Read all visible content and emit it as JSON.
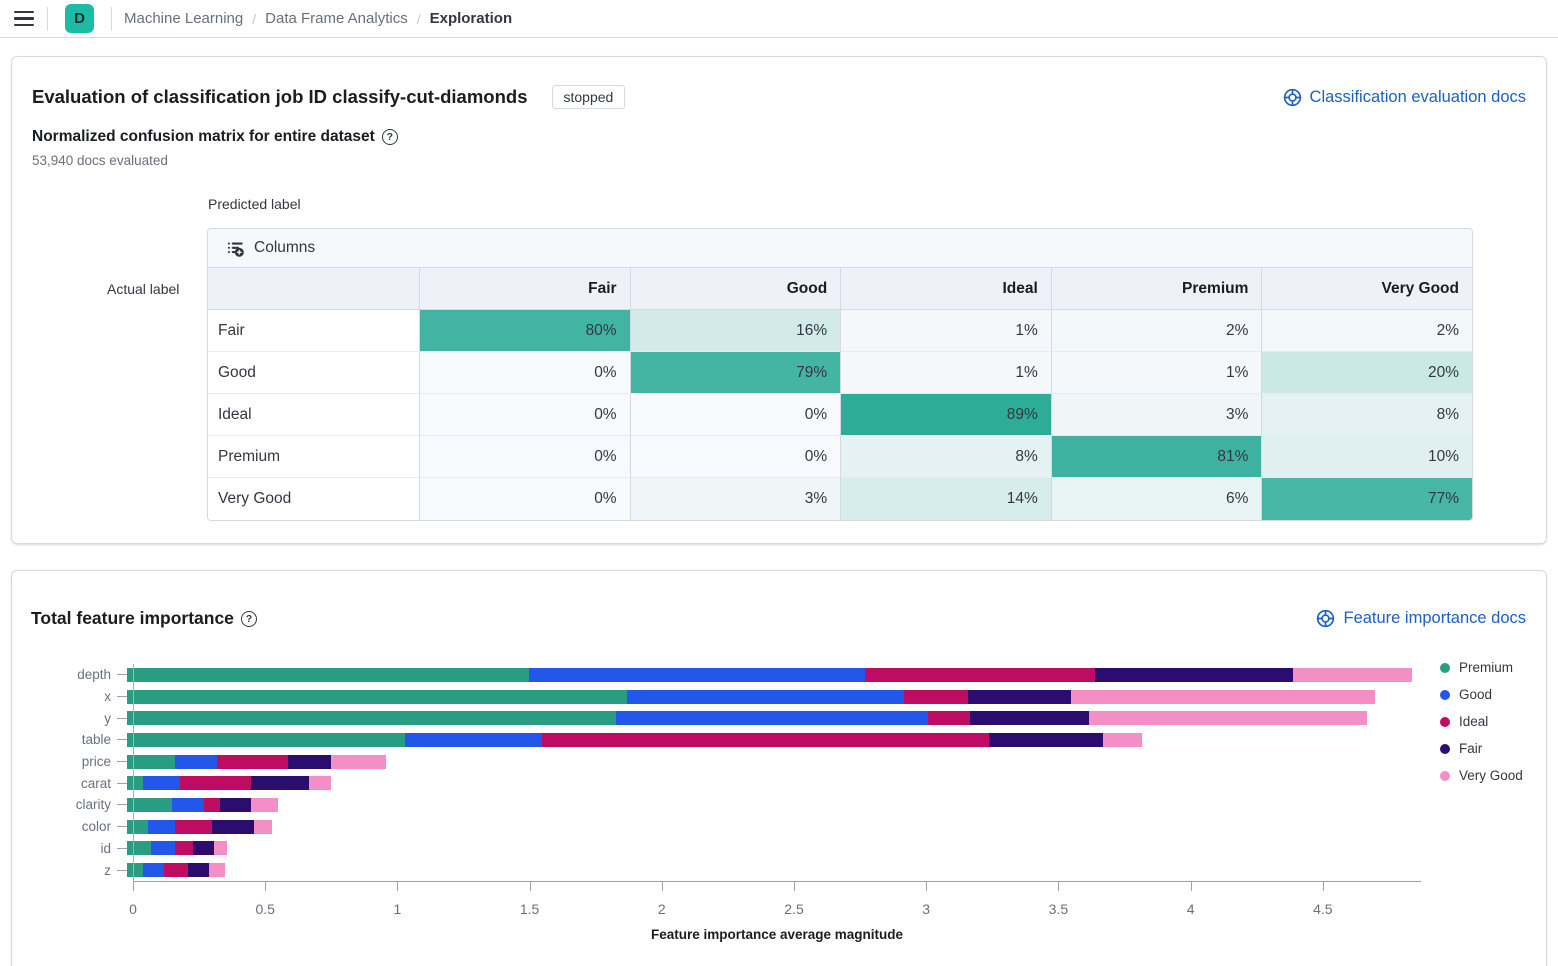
{
  "header": {
    "logo_letter": "D",
    "logo_color": "#1DBBA5",
    "breadcrumbs": [
      {
        "label": "Machine Learning"
      },
      {
        "label": "Data Frame Analytics"
      },
      {
        "label": "Exploration"
      }
    ]
  },
  "evaluation_panel": {
    "title": "Evaluation of classification job ID classify-cut-diamonds",
    "status_badge": "stopped",
    "docs_link": "Classification evaluation docs",
    "subtitle": "Normalized confusion matrix for entire dataset",
    "docs_evaluated": "53,940 docs evaluated",
    "predicted_label": "Predicted label",
    "actual_label": "Actual label",
    "columns_button": "Columns",
    "matrix": {
      "heat_rgb": "20,162,139",
      "columns": [
        "Fair",
        "Good",
        "Ideal",
        "Premium",
        "Very Good"
      ],
      "rows": [
        {
          "label": "Fair",
          "values": [
            80,
            16,
            1,
            2,
            2
          ]
        },
        {
          "label": "Good",
          "values": [
            0,
            79,
            1,
            1,
            20
          ]
        },
        {
          "label": "Ideal",
          "values": [
            0,
            0,
            89,
            3,
            8
          ]
        },
        {
          "label": "Premium",
          "values": [
            0,
            0,
            8,
            81,
            10
          ]
        },
        {
          "label": "Very Good",
          "values": [
            0,
            3,
            14,
            6,
            77
          ]
        }
      ]
    }
  },
  "feature_importance_panel": {
    "title": "Total feature importance",
    "docs_link": "Feature importance docs"
  },
  "chart_data": {
    "type": "bar",
    "orientation": "horizontal",
    "stacked": true,
    "title": "Total feature importance",
    "xlabel": "Feature importance average magnitude",
    "ylabel": "",
    "categories": [
      "depth",
      "x",
      "y",
      "table",
      "price",
      "carat",
      "clarity",
      "color",
      "id",
      "z"
    ],
    "series": [
      {
        "name": "Premium",
        "color": "#299D81",
        "values": [
          1.52,
          1.89,
          1.85,
          1.05,
          0.18,
          0.06,
          0.17,
          0.08,
          0.09,
          0.06
        ]
      },
      {
        "name": "Good",
        "color": "#2357E9",
        "values": [
          1.27,
          1.05,
          1.18,
          0.52,
          0.16,
          0.14,
          0.12,
          0.1,
          0.09,
          0.08
        ]
      },
      {
        "name": "Ideal",
        "color": "#BE0C62",
        "values": [
          0.87,
          0.24,
          0.16,
          1.69,
          0.27,
          0.27,
          0.06,
          0.14,
          0.07,
          0.09
        ]
      },
      {
        "name": "Fair",
        "color": "#2A0D6E",
        "values": [
          0.75,
          0.39,
          0.45,
          0.43,
          0.16,
          0.22,
          0.12,
          0.16,
          0.08,
          0.08
        ]
      },
      {
        "name": "Very Good",
        "color": "#F48FC5",
        "values": [
          0.45,
          1.15,
          1.05,
          0.15,
          0.21,
          0.08,
          0.1,
          0.07,
          0.05,
          0.06
        ]
      }
    ],
    "x_ticks": [
      "0",
      "0.5",
      "1",
      "1.5",
      "2",
      "2.5",
      "3",
      "3.5",
      "4",
      "4.5"
    ],
    "xlim": [
      0,
      4.87
    ],
    "grid": false,
    "legend_position": "right"
  }
}
